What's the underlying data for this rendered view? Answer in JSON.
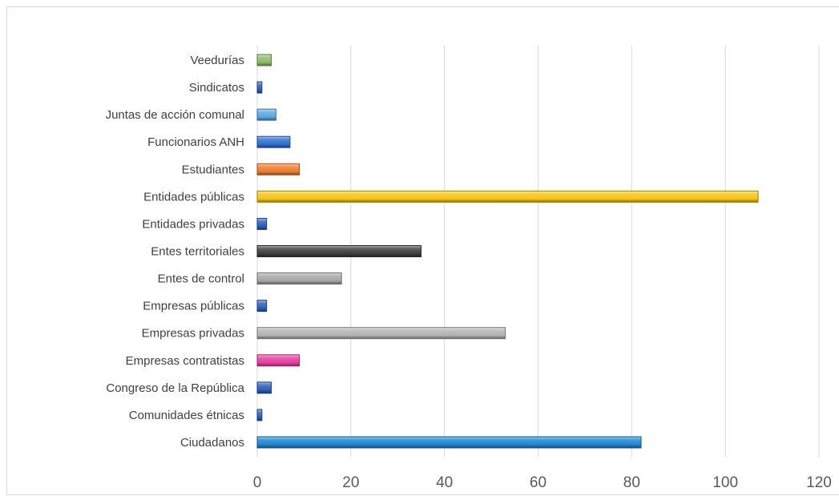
{
  "chart_data": {
    "type": "bar",
    "orientation": "horizontal",
    "title": "",
    "xlabel": "",
    "ylabel": "",
    "xlim": [
      0,
      120
    ],
    "x_ticks": [
      0,
      20,
      40,
      60,
      80,
      100,
      120
    ],
    "grid": true,
    "legend": "none",
    "categories": [
      "Ciudadanos",
      "Comunidades étnicas",
      "Congreso de la República",
      "Empresas contratistas",
      "Empresas privadas",
      "Empresas públicas",
      "Entes de control",
      "Entes territoriales",
      "Entidades privadas",
      "Entidades públicas",
      "Estudiantes",
      "Funcionarios ANH",
      "Juntas de acción comunal",
      "Sindicatos",
      "Veedurías"
    ],
    "values": [
      82,
      1,
      3,
      9,
      53,
      2,
      18,
      35,
      2,
      107,
      9,
      7,
      4,
      1,
      3
    ],
    "colors": [
      "#1f86d1",
      "#2f5fb8",
      "#2f5fb8",
      "#e83e9e",
      "#b3b3b3",
      "#2f5fb8",
      "#a6a6a6",
      "#3f3f3f",
      "#2f5fb8",
      "#f5c518",
      "#ed7d31",
      "#2f6fd0",
      "#5aa9e0",
      "#2f5fb8",
      "#8fbc6a"
    ]
  }
}
